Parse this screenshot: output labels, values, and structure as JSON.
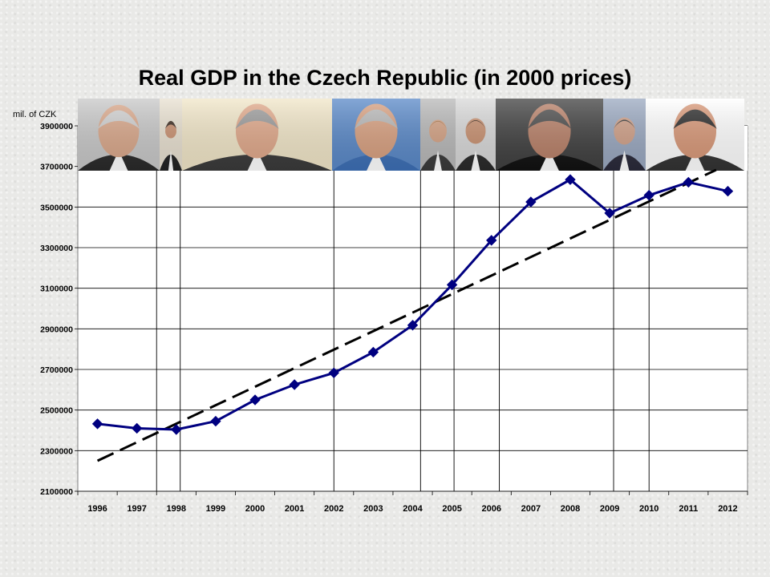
{
  "slide": {
    "unit_label": "mil. of CZK"
  },
  "chart_data": {
    "type": "line",
    "title": "Real GDP in the Czech Republic (in 2000 prices)",
    "ylabel": "mil. of CZK",
    "xlabel": "",
    "categories": [
      "1996",
      "1997",
      "1998",
      "1999",
      "2000",
      "2001",
      "2002",
      "2003",
      "2004",
      "2005",
      "2006",
      "2007",
      "2008",
      "2009",
      "2010",
      "2011",
      "2012"
    ],
    "series": [
      {
        "values": [
          2432000,
          2410000,
          2404000,
          2445000,
          2550000,
          2625000,
          2683000,
          2785000,
          2918000,
          3117000,
          3336000,
          3525000,
          3635000,
          3470000,
          3558000,
          3622000,
          3578000
        ],
        "color": "#000080",
        "marker": "diamond"
      }
    ],
    "trendline": {
      "style": "dashed",
      "color": "#000000",
      "start": 2250000,
      "end": 3710000
    },
    "ylim": [
      2100000,
      3900000
    ],
    "yticks": [
      2100000,
      2300000,
      2500000,
      2700000,
      2900000,
      3100000,
      3300000,
      3500000,
      3700000,
      3900000
    ],
    "grid": true,
    "legend": "none",
    "period_dividers_after_index": [
      1.5,
      2.1,
      6.0,
      8.2,
      9.05,
      10.2,
      13.1,
      14.0
    ]
  },
  "portraits": [
    {
      "name": "portrait-1",
      "face": "#d9a78a",
      "hair": "#cfcfcf",
      "suit": "#2a2a2a",
      "bg": "#c8c8c8"
    },
    {
      "name": "portrait-2",
      "face": "#c99070",
      "hair": "#3a2a20",
      "suit": "#222222",
      "bg": "#e8e0d0"
    },
    {
      "name": "portrait-3",
      "face": "#e0a88a",
      "hair": "#9a9a9a",
      "suit": "#3a3a3a",
      "bg": "#f1e6c8"
    },
    {
      "name": "portrait-4",
      "face": "#d8a080",
      "hair": "#b8b8b8",
      "suit": "#3d6fb5",
      "bg": "#5a89c8"
    },
    {
      "name": "portrait-5",
      "face": "#d4a284",
      "hair": "#a07040",
      "suit": "#3a3a3a",
      "bg": "#b8b8b8"
    },
    {
      "name": "portrait-6",
      "face": "#c89070",
      "hair": "#2a1a10",
      "suit": "#2a2a2a",
      "bg": "#d8d8d8"
    },
    {
      "name": "portrait-7",
      "face": "#b88068",
      "hair": "#4a4a4a",
      "suit": "#111111",
      "bg": "#404040"
    },
    {
      "name": "portrait-8",
      "face": "#d0a088",
      "hair": "#3a3a3a",
      "suit": "#2a2a3a",
      "bg": "#9aa8c0"
    },
    {
      "name": "portrait-9",
      "face": "#d89878",
      "hair": "#2a2a2a",
      "suit": "#333333",
      "bg": "#ffffff"
    }
  ]
}
